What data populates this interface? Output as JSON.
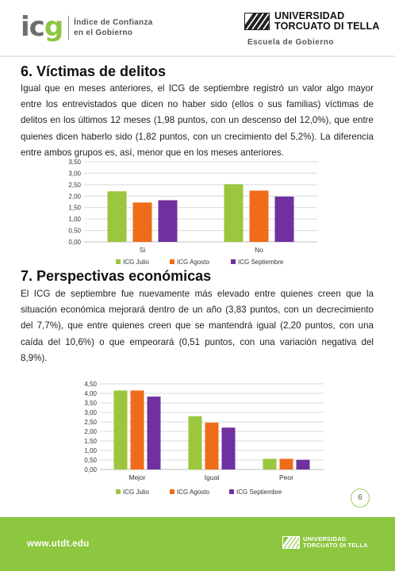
{
  "header": {
    "icg_logo": "icg",
    "icg_line1": "Índice de Confianza",
    "icg_line2": "en el Gobierno",
    "university_line1": "UNIVERSIDAD",
    "university_line2": "TORCUATO DI TELLA",
    "school": "Escuela de Gobierno"
  },
  "sections": [
    {
      "title": "6. Víctimas de delitos",
      "text": "Igual que en meses anteriores, el ICG de septiembre registró un valor algo mayor entre los entrevistados que dicen no haber sido (ellos o sus familias) víctimas de delitos en los últimos 12 meses (1,98 puntos, con un descenso del 12,0%), que entre quienes dicen haberlo sido (1,82 puntos, con un crecimiento del 5,2%). La diferencia entre ambos grupos es, así, menor que en los meses anteriores."
    },
    {
      "title": "7. Perspectivas económicas",
      "text": "El ICG de septiembre fue nuevamente más elevado entre quienes creen que la situación económica mejorará dentro de un año (3,83 puntos, con un decrecimiento del 7,7%), que entre quienes creen que se mantendrá igual (2,20 puntos, con una caída del 10,6%) o que empeorará (0,51 puntos, con una variación negativa del 8,9%)."
    }
  ],
  "chart_data": [
    {
      "type": "bar",
      "categories": [
        "Si",
        "No"
      ],
      "series": [
        {
          "name": "ICG Julio",
          "values": [
            2.21,
            2.52
          ],
          "color": "#9bc63e"
        },
        {
          "name": "ICG Agosto",
          "values": [
            1.72,
            2.24
          ],
          "color": "#ef6c1a"
        },
        {
          "name": "ICG Septiembre",
          "values": [
            1.82,
            1.98
          ],
          "color": "#7030a0"
        }
      ],
      "ylim": [
        0,
        3.5
      ],
      "yticks": [
        "0,00",
        "0,50",
        "1,00",
        "1,50",
        "2,00",
        "2,50",
        "3,00",
        "3,50"
      ],
      "grid": true,
      "legend": "bottom"
    },
    {
      "type": "bar",
      "categories": [
        "Mejor",
        "Igual",
        "Peor"
      ],
      "series": [
        {
          "name": "ICG Julio",
          "values": [
            4.15,
            2.8,
            0.56
          ],
          "color": "#9bc63e"
        },
        {
          "name": "ICG Agosto",
          "values": [
            4.15,
            2.46,
            0.56
          ],
          "color": "#ef6c1a"
        },
        {
          "name": "ICG Septiembre",
          "values": [
            3.83,
            2.2,
            0.51
          ],
          "color": "#7030a0"
        }
      ],
      "ylim": [
        0,
        4.5
      ],
      "yticks": [
        "0,00",
        "0,50",
        "1,00",
        "1,50",
        "2,00",
        "2,50",
        "3,00",
        "3,50",
        "4,00",
        "4,50"
      ],
      "grid": true,
      "legend": "bottom"
    }
  ],
  "page_number": "6",
  "footer": {
    "url": "www.utdt.edu",
    "university_line1": "UNIVERSIDAD",
    "university_line2": "TORCUATO DI TELLA"
  }
}
